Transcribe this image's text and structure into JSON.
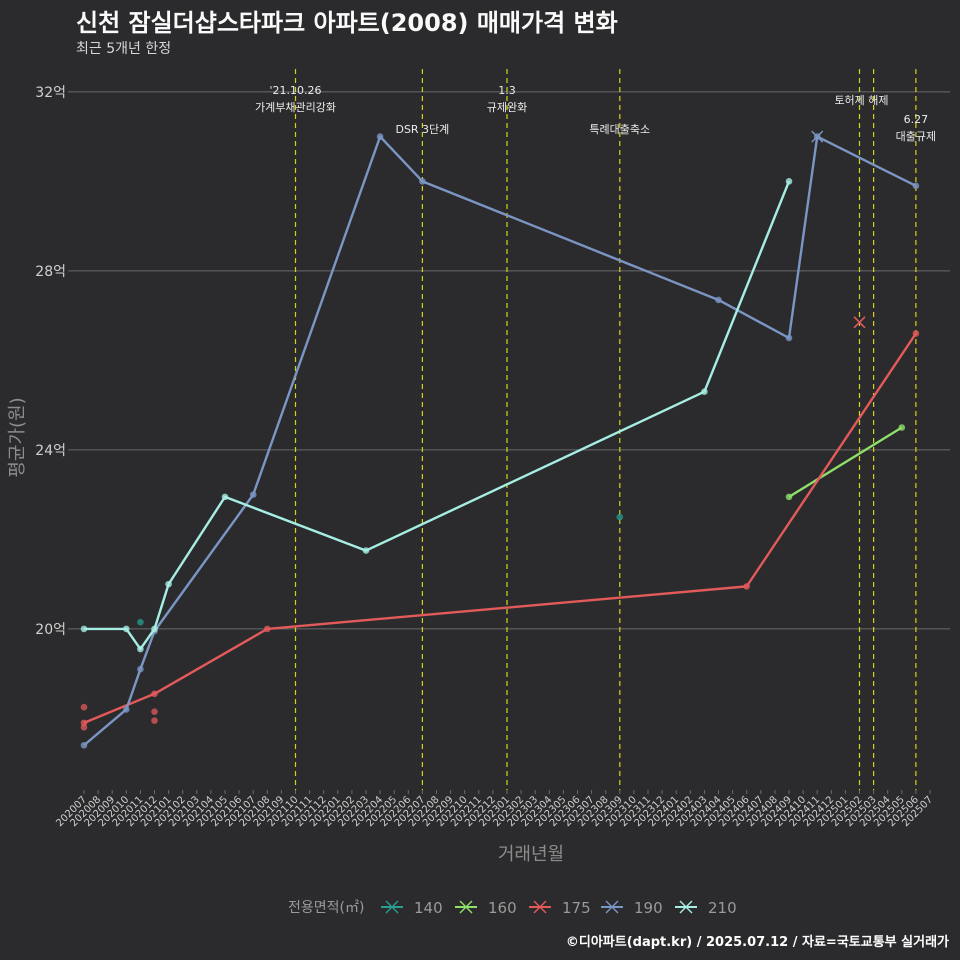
{
  "title": "신천 잠실더샵스타파크 아파트(2008) 매매가격 변화",
  "subtitle": "최근 5개년 한정",
  "caption": "©디아파트(dapt.kr) / 2025.07.12 / 자료=국토교통부 실거래가",
  "chart_data": {
    "type": "line",
    "title": "신천 잠실더샵스타파크 아파트(2008) 매매가격 변화",
    "subtitle": "최근 5개년 한정",
    "xlabel": "거래년월",
    "ylabel": "평균가(원)",
    "ylim": [
      16.4,
      32.6
    ],
    "yticks": [
      {
        "v": 20,
        "label": "20억"
      },
      {
        "v": 24,
        "label": "24억"
      },
      {
        "v": 28,
        "label": "28억"
      },
      {
        "v": 32,
        "label": "32억"
      }
    ],
    "x_categories": [
      "202007",
      "202008",
      "202009",
      "202010",
      "202011",
      "202012",
      "202101",
      "202102",
      "202103",
      "202104",
      "202105",
      "202106",
      "202107",
      "202108",
      "202109",
      "202110",
      "202111",
      "202112",
      "202201",
      "202202",
      "202203",
      "202204",
      "202205",
      "202206",
      "202207",
      "202208",
      "202209",
      "202210",
      "202211",
      "202212",
      "202301",
      "202302",
      "202303",
      "202304",
      "202305",
      "202306",
      "202307",
      "202308",
      "202309",
      "202310",
      "202311",
      "202312",
      "202401",
      "202402",
      "202403",
      "202404",
      "202405",
      "202406",
      "202407",
      "202408",
      "202409",
      "202410",
      "202411",
      "202412",
      "202501",
      "202502",
      "202503",
      "202504",
      "202505",
      "202506",
      "202507"
    ],
    "legend_title": "전용면적(㎡)",
    "legend_position": "bottom",
    "series": [
      {
        "name": "140",
        "color": "#2a9d8f",
        "line": [],
        "points": [
          [
            "202011",
            20.15
          ],
          [
            "202309",
            22.5
          ]
        ],
        "cancelled": []
      },
      {
        "name": "160",
        "color": "#8ee06a",
        "line": [
          [
            "202409",
            22.95
          ],
          [
            "202505",
            24.5
          ]
        ],
        "points": [],
        "cancelled": []
      },
      {
        "name": "175",
        "color": "#e35a5a",
        "line": [
          [
            "202007",
            17.9
          ],
          [
            "202012",
            18.55
          ],
          [
            "202108",
            20.0
          ],
          [
            "202406",
            20.95
          ],
          [
            "202506",
            26.6
          ]
        ],
        "points": [
          [
            "202007",
            18.25
          ],
          [
            "202007",
            17.8
          ],
          [
            "202012",
            18.15
          ],
          [
            "202012",
            17.95
          ]
        ],
        "cancelled": [
          [
            "202502",
            26.85
          ]
        ]
      },
      {
        "name": "190",
        "color": "#7b96c4",
        "line": [
          [
            "202007",
            17.4
          ],
          [
            "202010",
            18.2
          ],
          [
            "202011",
            19.1
          ],
          [
            "202012",
            19.95
          ],
          [
            "202107",
            23.0
          ],
          [
            "202204",
            31.0
          ],
          [
            "202207",
            30.0
          ],
          [
            "202404",
            27.35
          ],
          [
            "202409",
            26.5
          ],
          [
            "202411",
            31.0
          ],
          [
            "202506",
            29.9
          ]
        ],
        "points": [],
        "cancelled": [
          [
            "202411",
            31.0
          ]
        ]
      },
      {
        "name": "210",
        "color": "#a6eee3",
        "line": [
          [
            "202007",
            20.0
          ],
          [
            "202010",
            20.0
          ],
          [
            "202011",
            19.55
          ],
          [
            "202012",
            20.0
          ],
          [
            "202101",
            21.0
          ],
          [
            "202105",
            22.95
          ],
          [
            "202203",
            21.75
          ],
          [
            "202403",
            25.3
          ],
          [
            "202409",
            30.0
          ]
        ],
        "points": [],
        "cancelled": []
      }
    ],
    "events": [
      {
        "x": "202110",
        "label": "'21.10.26\n가계부채관리강화"
      },
      {
        "x": "202207",
        "label": "DSR 3단계"
      },
      {
        "x": "202301",
        "label": "1.3\n규제완화"
      },
      {
        "x": "202309",
        "label": "특례대출축소"
      },
      {
        "x": "202502",
        "label": "토허제 해제"
      },
      {
        "x": "202503",
        "label": ""
      },
      {
        "x": "202506",
        "label": "6.27\n대출규제"
      }
    ],
    "grid": true
  }
}
